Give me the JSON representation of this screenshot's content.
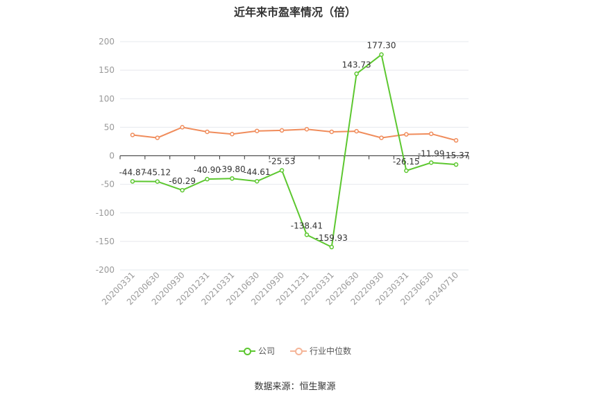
{
  "title": "近年来市盈率情况（倍）",
  "source": "数据来源：恒生聚源",
  "colors": {
    "company": "#5cc72f",
    "industry": "#f08c5b",
    "grid": "#e6e8ee",
    "axis_text": "#999999",
    "label_text": "#333333"
  },
  "chart_data": {
    "type": "line",
    "title": "近年来市盈率情况（倍）",
    "xlabel": "",
    "ylabel": "",
    "ylim": [
      -200,
      200
    ],
    "yticks": [
      "200",
      "150",
      "100",
      "50",
      "0",
      "-50",
      "-100",
      "-150",
      "-200"
    ],
    "grid": true,
    "legend_position": "bottom-center",
    "categories": [
      "20200331",
      "20200630",
      "20200930",
      "20201231",
      "20210331",
      "20210630",
      "20210930",
      "20211231",
      "20220331",
      "20220630",
      "20220930",
      "20230331",
      "20230630",
      "20240710"
    ],
    "series": [
      {
        "name": "公司",
        "color": "#5cc72f",
        "values": [
          -44.87,
          -45.12,
          -60.29,
          -40.9,
          -39.8,
          -44.61,
          -25.53,
          -138.41,
          -159.93,
          143.73,
          177.3,
          -26.15,
          -11.99,
          -15.37
        ],
        "labels": [
          "-44.87",
          "-45.12",
          "-60.29",
          "-40.90",
          "-39.80",
          "-44.61",
          "-25.53",
          "-138.41",
          "-159.93",
          "143.73",
          "177.30",
          "-26.15",
          "-11.99",
          "-15.37"
        ]
      },
      {
        "name": "行业中位数",
        "color": "#f08c5b",
        "values": [
          36.5,
          31.5,
          50.0,
          42.0,
          38.0,
          43.5,
          44.5,
          46.5,
          42.0,
          43.0,
          31.5,
          37.5,
          38.5,
          27.0
        ]
      }
    ]
  }
}
